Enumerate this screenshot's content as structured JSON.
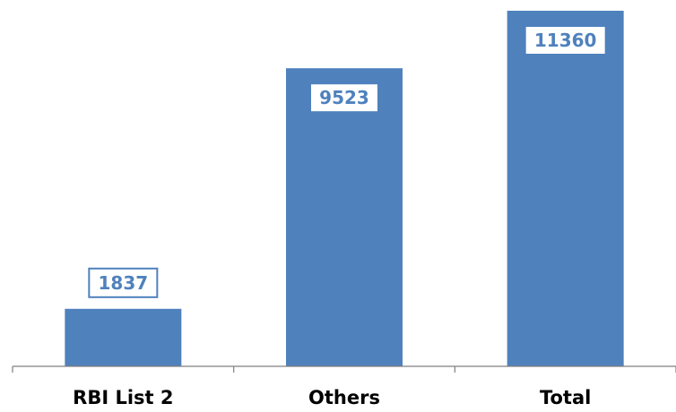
{
  "chart_data": {
    "type": "bar",
    "title": "",
    "xlabel": "",
    "ylabel": "",
    "categories": [
      "RBI List 2",
      "Others",
      "Total"
    ],
    "values": [
      1837,
      9523,
      11360
    ],
    "data_labels": [
      "1837",
      "9523",
      "11360"
    ],
    "ylim": [
      0,
      11360
    ],
    "grid": false,
    "legend": "none",
    "colors": {
      "bar": "#4f81bd",
      "label_text": "#4f81bd",
      "label_box_border": "#4f81bd",
      "axis": "#7f7f7f",
      "category_text": "#000000"
    }
  }
}
